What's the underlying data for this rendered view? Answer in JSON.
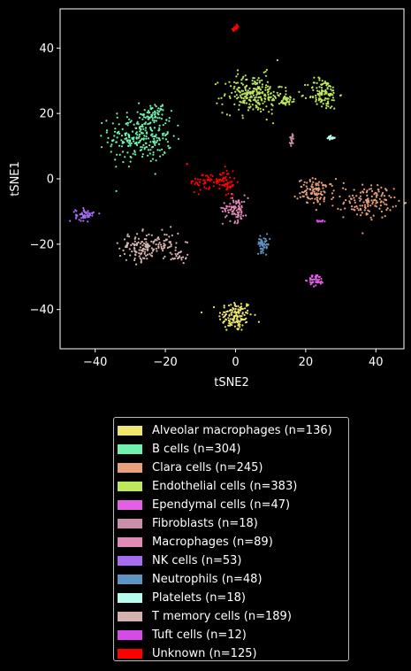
{
  "chart_data": {
    "type": "scatter",
    "xlabel": "tSNE2",
    "ylabel": "tSNE1",
    "xlim": [
      -50,
      48
    ],
    "ylim": [
      -52,
      52
    ],
    "xticks": [
      -40,
      -20,
      0,
      20,
      40
    ],
    "yticks": [
      -40,
      -20,
      0,
      20,
      40
    ],
    "grid": false,
    "legend_placement": "below",
    "series": [
      {
        "name": "Alveolar macrophages (n=136)",
        "color": "#f0e66e",
        "clusters": [
          {
            "cx": 0,
            "cy": -42,
            "sx": 2.4,
            "sy": 2.4,
            "n": 136
          }
        ]
      },
      {
        "name": "B cells (n=304)",
        "color": "#6ff2ad",
        "clusters": [
          {
            "cx": -27,
            "cy": 13,
            "sx": 4.5,
            "sy": 4.0,
            "n": 260
          },
          {
            "cx": -23,
            "cy": 20,
            "sx": 1.5,
            "sy": 1.2,
            "n": 44
          }
        ]
      },
      {
        "name": "Clara cells (n=245)",
        "color": "#e8a07a",
        "clusters": [
          {
            "cx": 23,
            "cy": -4,
            "sx": 2.6,
            "sy": 2.0,
            "n": 110
          },
          {
            "cx": 38,
            "cy": -7,
            "sx": 3.5,
            "sy": 2.5,
            "n": 135
          }
        ]
      },
      {
        "name": "Endothelial cells (n=383)",
        "color": "#bde85b",
        "clusters": [
          {
            "cx": 5,
            "cy": 26,
            "sx": 4.2,
            "sy": 3.0,
            "n": 230
          },
          {
            "cx": 14,
            "cy": 24,
            "sx": 2.0,
            "sy": 0.8,
            "n": 40
          },
          {
            "cx": 25,
            "cy": 26,
            "sx": 2.2,
            "sy": 2.4,
            "n": 113
          }
        ]
      },
      {
        "name": "Ependymal cells (n=47)",
        "color": "#e35fe3",
        "clusters": [
          {
            "cx": 23,
            "cy": -31,
            "sx": 1.1,
            "sy": 0.9,
            "n": 47
          }
        ]
      },
      {
        "name": "Fibroblasts (n=18)",
        "color": "#c98fa8",
        "clusters": [
          {
            "cx": 16,
            "cy": 12,
            "sx": 0.3,
            "sy": 1.0,
            "n": 18
          }
        ]
      },
      {
        "name": "Macrophages (n=89)",
        "color": "#e18ab8",
        "clusters": [
          {
            "cx": 0,
            "cy": -9,
            "sx": 1.8,
            "sy": 2.0,
            "n": 89
          }
        ]
      },
      {
        "name": "NK cells (n=53)",
        "color": "#a76cf4",
        "clusters": [
          {
            "cx": -43,
            "cy": -11,
            "sx": 1.3,
            "sy": 0.9,
            "n": 53
          }
        ]
      },
      {
        "name": "Neutrophils (n=48)",
        "color": "#5f93c2",
        "clusters": [
          {
            "cx": 8,
            "cy": -20,
            "sx": 0.9,
            "sy": 1.2,
            "n": 48
          }
        ]
      },
      {
        "name": "Platelets (n=18)",
        "color": "#b8fcf0",
        "clusters": [
          {
            "cx": 27,
            "cy": 12.5,
            "sx": 0.7,
            "sy": 0.3,
            "n": 18
          }
        ]
      },
      {
        "name": "T memory cells (n=189)",
        "color": "#d6b2ae",
        "clusters": [
          {
            "cx": -27,
            "cy": -21,
            "sx": 3.0,
            "sy": 2.2,
            "n": 120
          },
          {
            "cx": -20,
            "cy": -20,
            "sx": 2.5,
            "sy": 2.0,
            "n": 50
          },
          {
            "cx": -16,
            "cy": -23.5,
            "sx": 1.2,
            "sy": 0.8,
            "n": 19
          }
        ]
      },
      {
        "name": "Tuft cells (n=12)",
        "color": "#d64ae8",
        "clusters": [
          {
            "cx": 24,
            "cy": -13,
            "sx": 0.5,
            "sy": 0.2,
            "n": 12
          }
        ]
      },
      {
        "name": "Unknown (n=125)",
        "color": "#ff0000",
        "clusters": [
          {
            "cx": 0,
            "cy": 46,
            "sx": 0.6,
            "sy": 0.5,
            "n": 20
          },
          {
            "cx": -7,
            "cy": -1,
            "sx": 3.0,
            "sy": 1.4,
            "n": 65
          },
          {
            "cx": -2,
            "cy": -1,
            "sx": 1.0,
            "sy": 2.0,
            "n": 38
          },
          {
            "cx": -14,
            "cy": 4.5,
            "sx": 0.2,
            "sy": 0.2,
            "n": 2
          }
        ]
      }
    ]
  }
}
